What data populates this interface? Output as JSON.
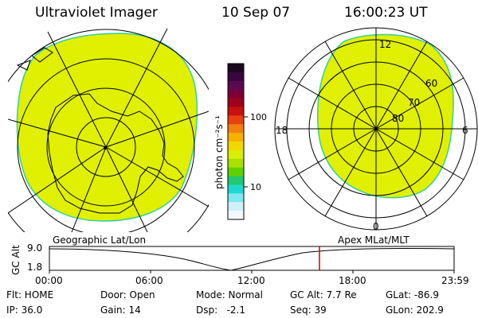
{
  "header": {
    "instrument": "Ultraviolet Imager",
    "date": "10 Sep 07",
    "time": "16:00:23 UT"
  },
  "colorbar": {
    "units_label": "photon cm⁻²s⁻¹",
    "tick_high": "100",
    "tick_low": "10",
    "colors_top_to_bottom": [
      "#1a0a1e",
      "#3a0640",
      "#5a0a50",
      "#7a0038",
      "#a0001a",
      "#c81010",
      "#e84010",
      "#f08010",
      "#f8b000",
      "#f0d800",
      "#d8f000",
      "#a8e000",
      "#60d000",
      "#20c870",
      "#20d8d0",
      "#80e8f0",
      "#d0f0f8",
      "#f4f8fc"
    ]
  },
  "left_map": {
    "label": "Geographic Lat/Lon",
    "fill_color": "#e0f000"
  },
  "right_map": {
    "label": "Apex MLat/MLT",
    "lat_labels": [
      "80",
      "70",
      "60"
    ],
    "mlt_labels": {
      "top": "12",
      "left": "18",
      "right": "6",
      "bottom": "0"
    },
    "fill_color": "#e0f000"
  },
  "altitude_plot": {
    "ylabel": "GC Alt",
    "ytick_top": "9.0",
    "ytick_bottom": "1.8",
    "xticks": [
      "00:00",
      "06:00",
      "12:00",
      "18:00",
      "23:59"
    ],
    "marker_color": "#d00000"
  },
  "info": {
    "row1": [
      "Flt: HOME",
      "Door: Open",
      "Mode: Normal",
      "GC Alt: 7.7 Re",
      "GLat: -86.9"
    ],
    "row2": [
      "IP: 36.0",
      "Gain: 14",
      "Dsp:   -2.1",
      "Seq: 39",
      "GLon: 202.9"
    ]
  }
}
